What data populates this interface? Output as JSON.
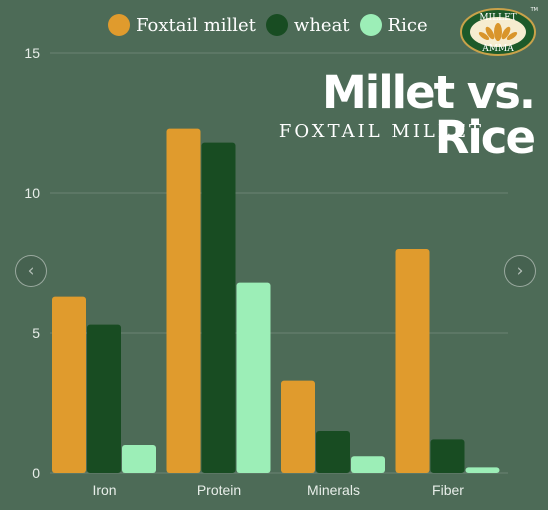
{
  "colors": {
    "background": "#4d6b57",
    "foxtail_millet": "#e09b2d",
    "wheat": "#184c22",
    "rice": "#9ceeb7",
    "axis_text": "#e8eee9",
    "grid": "#6a8373"
  },
  "legend": [
    {
      "label": "Foxtail millet",
      "color": "#e09b2d"
    },
    {
      "label": "wheat",
      "color": "#184c22"
    },
    {
      "label": "Rice",
      "color": "#9ceeb7"
    }
  ],
  "header": {
    "title": "Millet vs. Rice",
    "subtitle": "FOXTAIL MILLET"
  },
  "logo": {
    "top_text": "MILLET",
    "bottom_text": "AMMA",
    "mark": "TM"
  },
  "nav": {
    "prev_icon": "chevron-left-icon",
    "next_icon": "chevron-right-icon"
  },
  "chart_data": {
    "type": "bar",
    "title": "Millet vs. Rice",
    "subtitle": "FOXTAIL MILLET",
    "categories": [
      "Iron",
      "Protein",
      "Minerals",
      "Fiber"
    ],
    "series": [
      {
        "name": "Foxtail millet",
        "values": [
          6.3,
          12.3,
          3.3,
          8.0
        ]
      },
      {
        "name": "wheat",
        "values": [
          5.3,
          11.8,
          1.5,
          1.2
        ]
      },
      {
        "name": "Rice",
        "values": [
          1.0,
          6.8,
          0.6,
          0.2
        ]
      }
    ],
    "ylim": [
      0,
      15
    ],
    "yticks": [
      "0",
      "5",
      "10",
      "15"
    ],
    "grid": true,
    "legend_position": "top"
  }
}
